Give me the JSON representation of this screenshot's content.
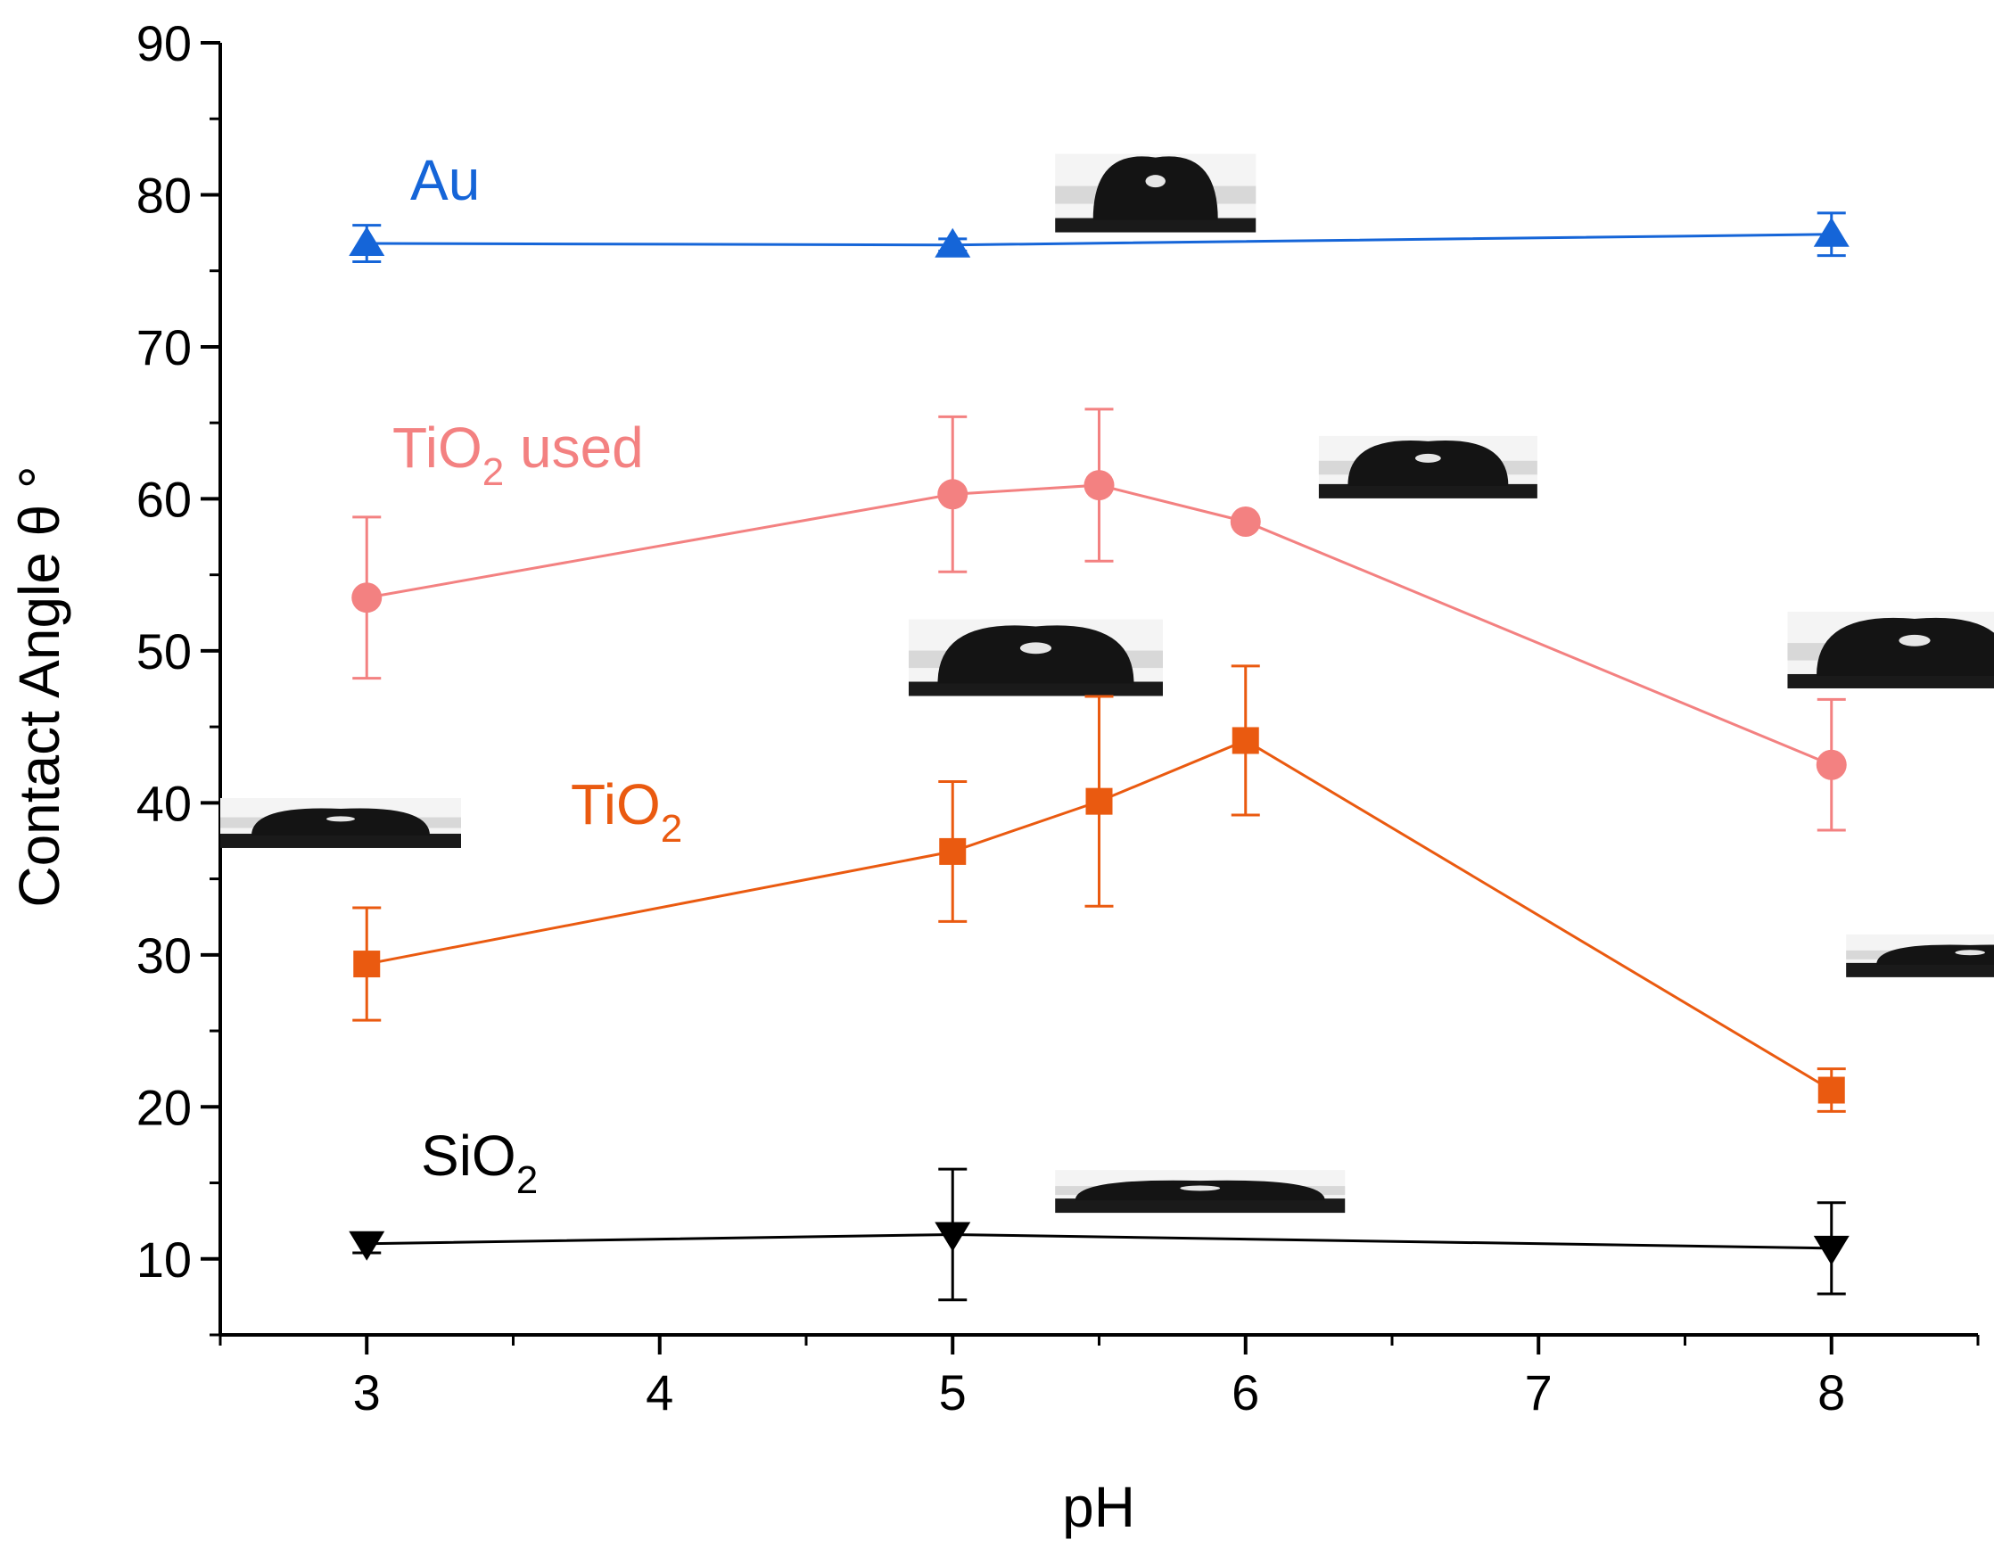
{
  "chart_data": {
    "type": "line",
    "xlabel": "pH",
    "ylabel": "Contact Angle θ °",
    "xlim": [
      2.5,
      8.5
    ],
    "ylim": [
      5,
      90
    ],
    "xticks": [
      3,
      4,
      5,
      6,
      7,
      8
    ],
    "yticks": [
      10,
      20,
      30,
      40,
      50,
      60,
      70,
      80,
      90
    ],
    "xtick_labels": [
      "3",
      "4",
      "5",
      "6",
      "7",
      "8"
    ],
    "ytick_labels": [
      "10",
      "20",
      "30",
      "40",
      "50",
      "60",
      "70",
      "80",
      "90"
    ],
    "grid": false,
    "series": [
      {
        "name": "Au",
        "label_text": "Au",
        "color": "#1565d8",
        "marker": "triangle-up",
        "x": [
          3,
          5,
          8
        ],
        "values": [
          76.8,
          76.7,
          77.4
        ],
        "error": [
          1.2,
          0.4,
          1.4
        ]
      },
      {
        "name": "TiO2 used",
        "label_main": "TiO",
        "label_sub": "2",
        "label_rest": " used",
        "color": "#f38181",
        "marker": "circle",
        "x": [
          3,
          5,
          5.5,
          6,
          8
        ],
        "values": [
          53.5,
          60.3,
          60.9,
          58.5,
          42.5
        ],
        "error": [
          5.3,
          5.1,
          5.0,
          0.0,
          4.3
        ]
      },
      {
        "name": "TiO2",
        "label_main": "TiO",
        "label_sub": "2",
        "label_rest": "",
        "color": "#ea5a10",
        "marker": "square",
        "x": [
          3,
          5,
          5.5,
          6,
          8
        ],
        "values": [
          29.4,
          36.8,
          40.1,
          44.1,
          21.1
        ],
        "error": [
          3.7,
          4.6,
          6.9,
          4.9,
          1.4
        ]
      },
      {
        "name": "SiO2",
        "label_main": "SiO",
        "label_sub": "2",
        "label_rest": "",
        "color": "#000000",
        "marker": "triangle-down",
        "x": [
          3,
          5,
          8
        ],
        "values": [
          11.0,
          11.6,
          10.7
        ],
        "error": [
          0.6,
          4.3,
          3.0
        ]
      }
    ],
    "droplet_images": [
      {
        "name": "droplet-au",
        "x": 5.35,
        "y": 78,
        "shape": "tall"
      },
      {
        "name": "droplet-tio2-used-6",
        "x": 6.25,
        "y": 60.5,
        "shape": "medium"
      },
      {
        "name": "droplet-tio2-used-8",
        "x": 7.85,
        "y": 48,
        "shape": "medium-wide"
      },
      {
        "name": "droplet-tio2-5",
        "x": 4.85,
        "y": 47.5,
        "shape": "medium-wide"
      },
      {
        "name": "droplet-tio2-3",
        "x": 2.5,
        "y": 37.5,
        "shape": "flat"
      },
      {
        "name": "droplet-tio2-8",
        "x": 8.05,
        "y": 29,
        "shape": "very-flat"
      },
      {
        "name": "droplet-sio2",
        "x": 5.35,
        "y": 13.5,
        "shape": "very-flat-wide"
      }
    ]
  }
}
